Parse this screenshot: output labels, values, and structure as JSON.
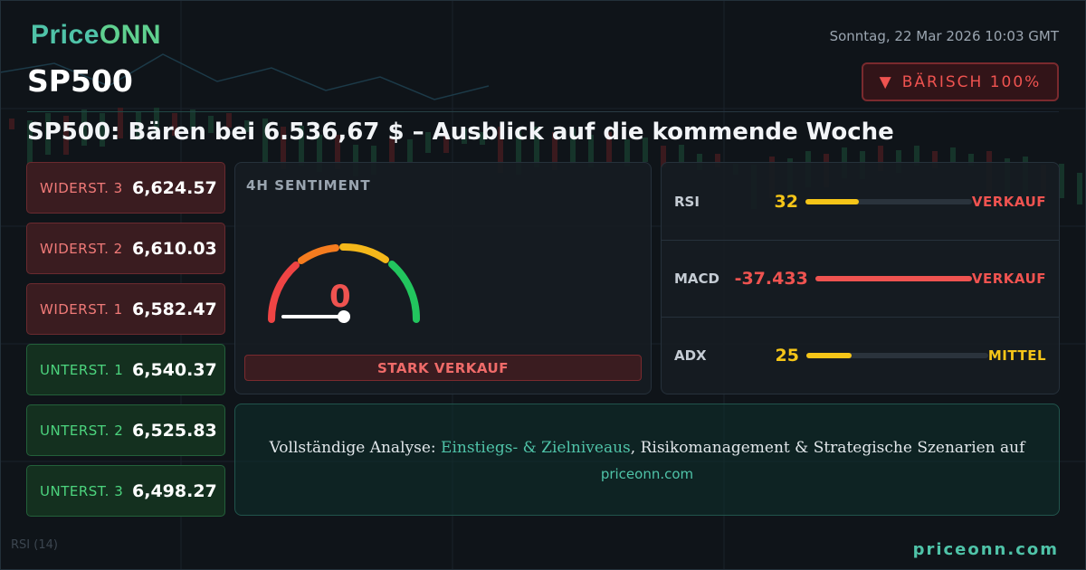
{
  "brand": {
    "name_a": "Price",
    "name_b": "ONN"
  },
  "date": "Sonntag, 22 Mar 2026 10:03 GMT",
  "symbol": "SP500",
  "bias": {
    "arrow": "▼",
    "label": "BÄRISCH 100%"
  },
  "headline": "SP500: Bären bei 6.536,67 $ – Ausblick auf die kommende Woche",
  "levels": [
    {
      "name": "WIDERST. 3",
      "value": "6,624.57",
      "kind": "resistance"
    },
    {
      "name": "WIDERST. 2",
      "value": "6,610.03",
      "kind": "resistance"
    },
    {
      "name": "WIDERST. 1",
      "value": "6,582.47",
      "kind": "resistance"
    },
    {
      "name": "UNTERST. 1",
      "value": "6,540.37",
      "kind": "support"
    },
    {
      "name": "UNTERST. 2",
      "value": "6,525.83",
      "kind": "support"
    },
    {
      "name": "UNTERST. 3",
      "value": "6,498.27",
      "kind": "support"
    }
  ],
  "sentiment": {
    "title": "4H SENTIMENT",
    "value": "0",
    "label": "STARK VERKAUF"
  },
  "indicators": [
    {
      "name": "RSI",
      "value": "32",
      "fill": 0.32,
      "signal": "VERKAUF",
      "color": "#f5c518",
      "signal_color": "#ef5350"
    },
    {
      "name": "MACD",
      "value": "-37.433",
      "fill": 1.0,
      "signal": "VERKAUF",
      "color": "#ef5350",
      "signal_color": "#ef5350"
    },
    {
      "name": "ADX",
      "value": "25",
      "fill": 0.25,
      "signal": "MITTEL",
      "color": "#f5c518",
      "signal_color": "#f5c518"
    }
  ],
  "cta": {
    "prefix": "Vollständige Analyse: ",
    "highlight": "Einstiegs- & Zielniveaus",
    "suffix": ", Risikomanagement & Strategische Szenarien auf",
    "url": "priceonn.com"
  },
  "footer_url": "priceonn.com",
  "colors": {
    "accent": "#4fc3a8",
    "bearish": "#ef5350",
    "bullish": "#4cd47e",
    "neutral": "#f5c518"
  }
}
